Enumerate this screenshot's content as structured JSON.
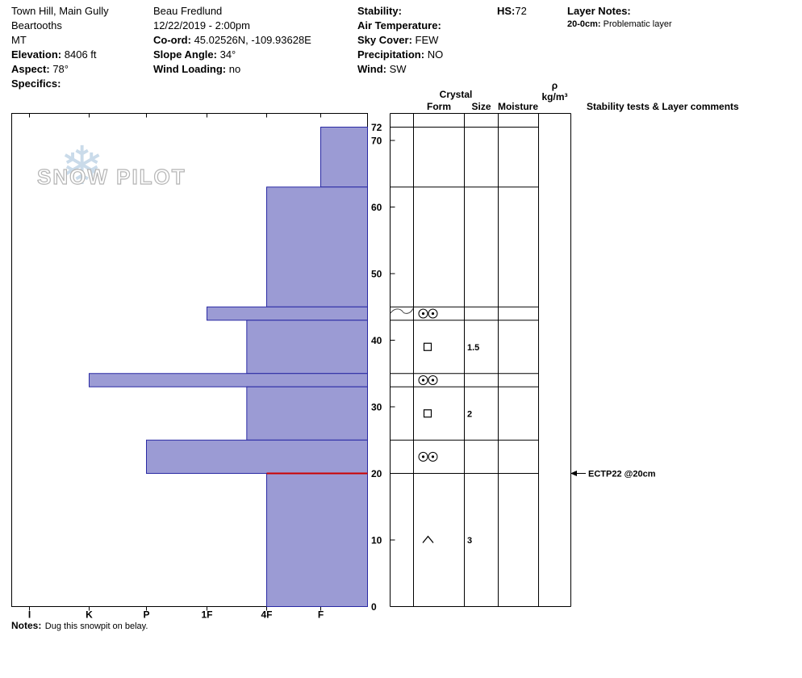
{
  "header": {
    "site": {
      "name": "Town Hill, Main Gully",
      "range": "Beartooths",
      "state": "MT",
      "elevation_label": "Elevation:",
      "elevation_value": "8406 ft",
      "aspect_label": "Aspect:",
      "aspect_value": "78°",
      "specifics_label": "Specifics:"
    },
    "observation": {
      "observer": "Beau Fredlund",
      "datetime": "12/22/2019 - 2:00pm",
      "coord_label": "Co-ord:",
      "coord_value": "45.02526N, -109.93628E",
      "slope_angle_label": "Slope Angle:",
      "slope_angle_value": "34°",
      "wind_loading_label": "Wind Loading:",
      "wind_loading_value": "no"
    },
    "weather": {
      "stability_label": "Stability:",
      "air_temp_label": "Air Temperature:",
      "sky_cover_label": "Sky Cover:",
      "sky_cover_value": "FEW",
      "precip_label": "Precipitation:",
      "precip_value": "NO",
      "wind_label": "Wind:",
      "wind_value": "SW"
    },
    "hs_label": "HS:",
    "hs_value": "72",
    "layer_notes_label": "Layer Notes:",
    "layer_note_depth": "20-0cm:",
    "layer_note_text": "Problematic layer"
  },
  "watermark": {
    "text": "SNOW PILOT",
    "snowflake": "❄"
  },
  "table_headers": {
    "crystal": "Crystal",
    "form": "Form",
    "size": "Size",
    "moisture": "Moisture",
    "rho": "ρ",
    "rho_unit": "kg/m³",
    "comments": "Stability tests & Layer comments"
  },
  "notes": {
    "label": "Notes:",
    "text": "Dug this snowpit on belay."
  },
  "chart_data": {
    "type": "bar",
    "subtype": "snow-profile-hardness",
    "hs_cm": 72,
    "depth_unit": "cm",
    "depth_range_cm": [
      0,
      72
    ],
    "depth_ticks": [
      72,
      70,
      60,
      50,
      40,
      30,
      20,
      10,
      0
    ],
    "hardness_categories": [
      "I",
      "K",
      "P",
      "1F",
      "4F",
      "F"
    ],
    "bar_direction": "right-to-left (harder = longer)",
    "layers": [
      {
        "top_cm": 72,
        "bottom_cm": 63,
        "hardness": "F",
        "form": "",
        "form_glyph": "",
        "size_mm": "",
        "moisture": ""
      },
      {
        "top_cm": 63,
        "bottom_cm": 45,
        "hardness": "4F",
        "form": "",
        "form_glyph": "",
        "size_mm": "",
        "moisture": ""
      },
      {
        "top_cm": 45,
        "bottom_cm": 43,
        "hardness": "1F",
        "form": "MF",
        "form_glyph": "double-circle",
        "size_mm": "",
        "moisture": ""
      },
      {
        "top_cm": 43,
        "bottom_cm": 35,
        "hardness": "4F+",
        "form": "FC",
        "form_glyph": "square",
        "size_mm": "1.5",
        "moisture": ""
      },
      {
        "top_cm": 35,
        "bottom_cm": 33,
        "hardness": "K",
        "form": "MF",
        "form_glyph": "double-circle",
        "size_mm": "",
        "moisture": ""
      },
      {
        "top_cm": 33,
        "bottom_cm": 25,
        "hardness": "4F+",
        "form": "FC",
        "form_glyph": "square",
        "size_mm": "2",
        "moisture": ""
      },
      {
        "top_cm": 25,
        "bottom_cm": 20,
        "hardness": "P",
        "form": "MF",
        "form_glyph": "double-circle",
        "size_mm": "",
        "moisture": ""
      },
      {
        "top_cm": 20,
        "bottom_cm": 0,
        "hardness": "4F",
        "form": "DH",
        "form_glyph": "chevron",
        "size_mm": "3",
        "moisture": "",
        "failure_plane_at_top": true
      }
    ],
    "stability_tests": [
      {
        "depth_cm": 20,
        "label": "ECTP22 @20cm"
      }
    ],
    "colors": {
      "bar_fill": "#9b9bd4",
      "bar_stroke": "#2929a3",
      "failure_line": "#cc0000",
      "grid": "#000000"
    }
  }
}
